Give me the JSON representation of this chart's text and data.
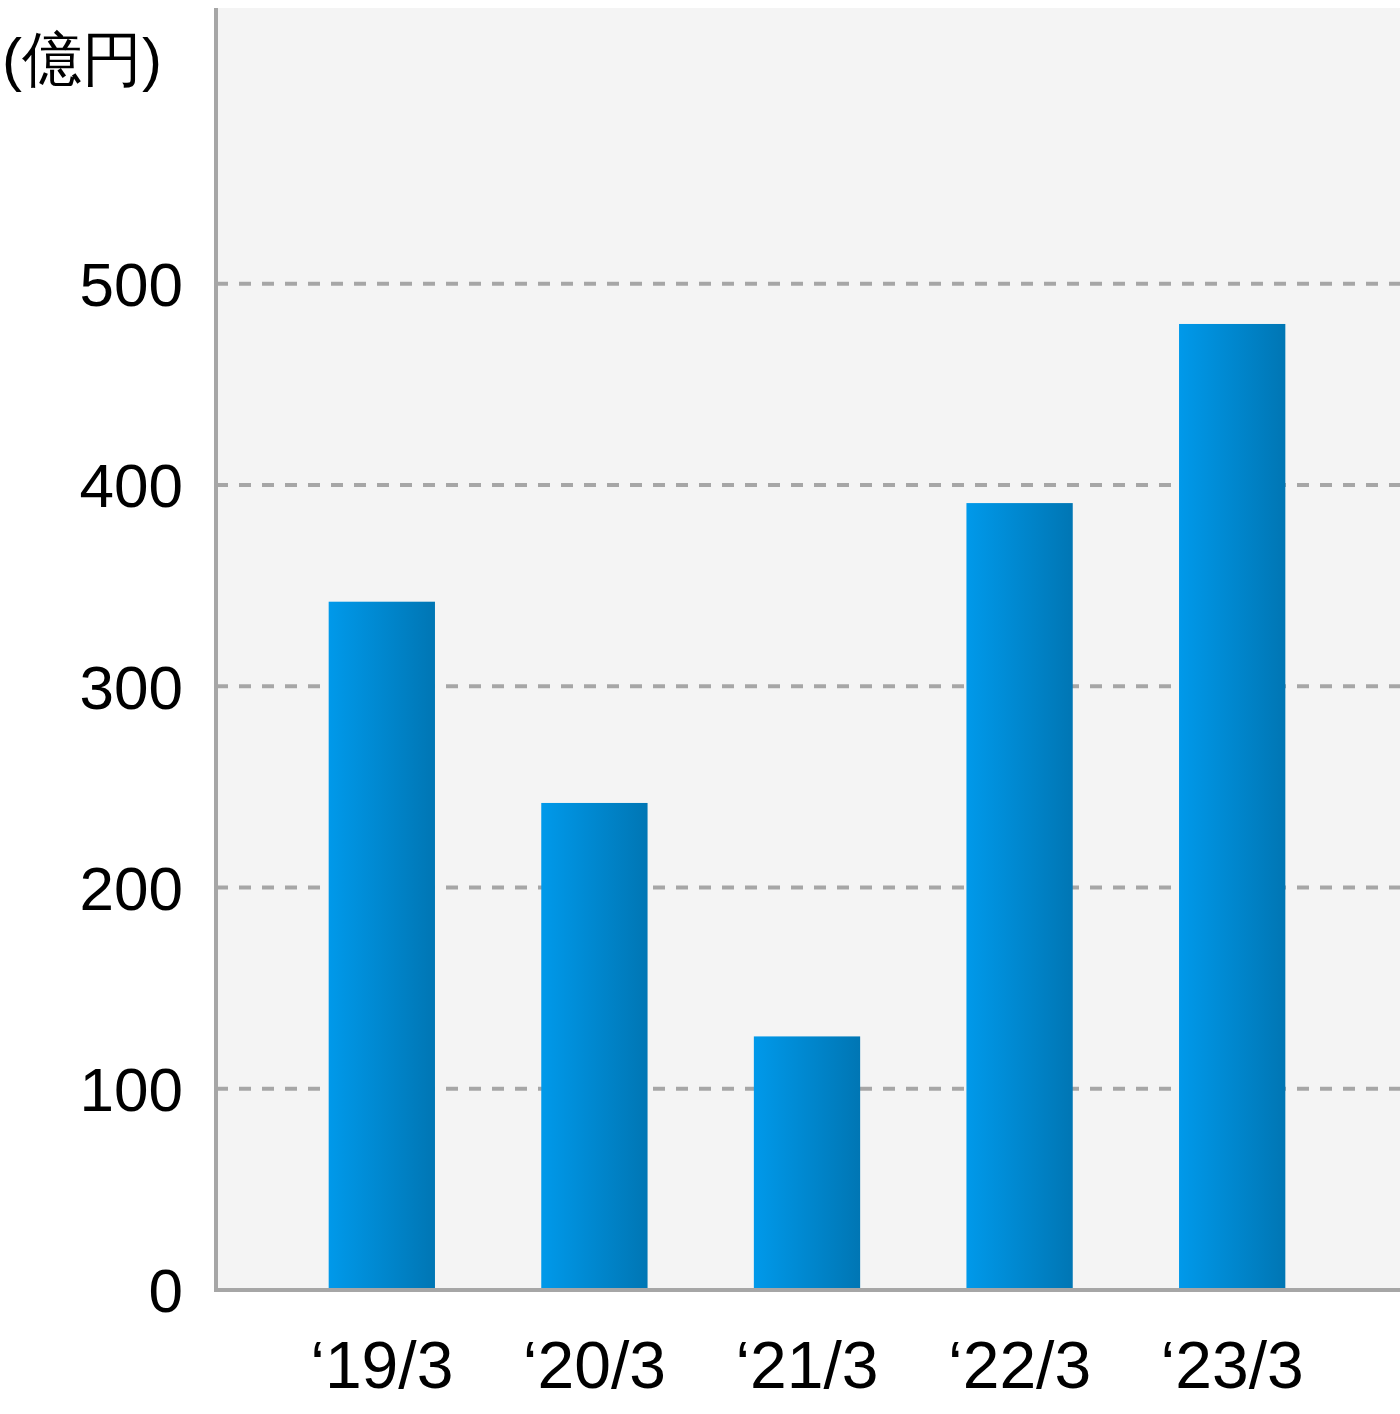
{
  "chart_data": {
    "type": "bar",
    "ylabel": "(億円)",
    "categories": [
      "‘19/3",
      "‘20/3",
      "‘21/3",
      "‘22/3",
      "‘23/3"
    ],
    "values": [
      342,
      242,
      126,
      391,
      480
    ],
    "color": "#0086cc",
    "ylim": [
      0,
      637
    ],
    "yticks": [
      0,
      100,
      200,
      300,
      400,
      500
    ],
    "grid": "y"
  }
}
